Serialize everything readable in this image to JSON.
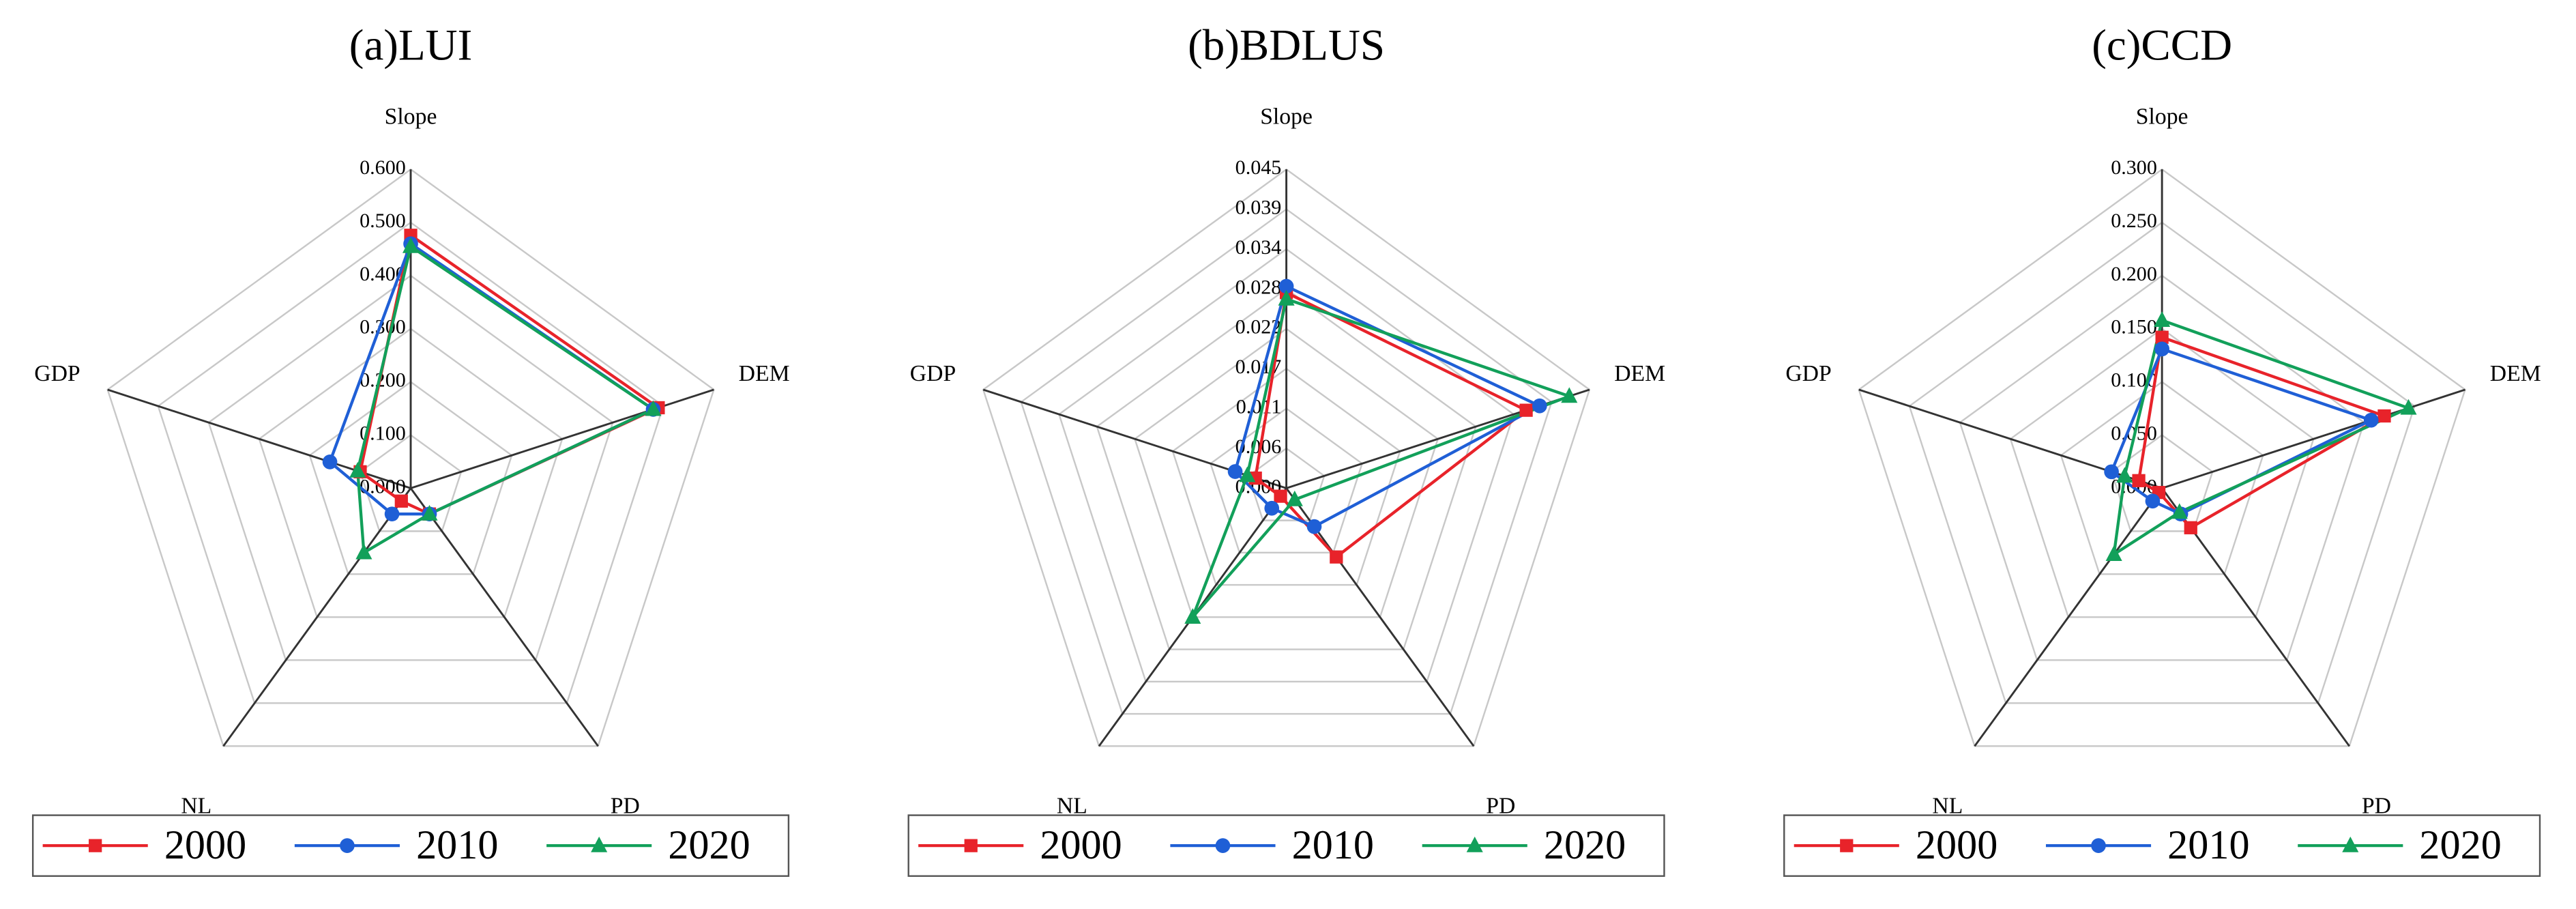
{
  "chart_data": [
    {
      "type": "radar",
      "title": "(a)LUI",
      "axes": [
        "Slope",
        "DEM",
        "PD",
        "NL",
        "GDP"
      ],
      "rlim": [
        0,
        0.6
      ],
      "rticks": [
        {
          "value": 0,
          "label": "0.000"
        },
        {
          "value": 0.1,
          "label": "0.100"
        },
        {
          "value": 0.2,
          "label": "0.200"
        },
        {
          "value": 0.3,
          "label": "0.300"
        },
        {
          "value": 0.4,
          "label": "0.400"
        },
        {
          "value": 0.5,
          "label": "0.500"
        },
        {
          "value": 0.6,
          "label": "0.600"
        }
      ],
      "grid": true,
      "series": [
        {
          "name": "2000",
          "color": "#e8232a",
          "marker": "square",
          "values": [
            0.476,
            0.49,
            0.06,
            0.03,
            0.1
          ]
        },
        {
          "name": "2010",
          "color": "#1f5fd6",
          "marker": "circle",
          "values": [
            0.46,
            0.48,
            0.06,
            0.06,
            0.16
          ]
        },
        {
          "name": "2020",
          "color": "#12a05a",
          "marker": "triangle",
          "values": [
            0.455,
            0.48,
            0.06,
            0.15,
            0.105
          ]
        }
      ]
    },
    {
      "type": "radar",
      "title": "(b)BDLUS",
      "axes": [
        "Slope",
        "DEM",
        "PD",
        "NL",
        "GDP"
      ],
      "rlim": [
        0,
        0.045
      ],
      "rticks": [
        {
          "value": 0,
          "label": "0.000"
        },
        {
          "value": 0.005625,
          "label": "0.006"
        },
        {
          "value": 0.01125,
          "label": "0.011"
        },
        {
          "value": 0.016875,
          "label": "0.017"
        },
        {
          "value": 0.0225,
          "label": "0.022"
        },
        {
          "value": 0.028125,
          "label": "0.028"
        },
        {
          "value": 0.03375,
          "label": "0.034"
        },
        {
          "value": 0.039375,
          "label": "0.039"
        },
        0.045
      ],
      "grid": true,
      "series": [
        {
          "name": "2000",
          "color": "#e8232a",
          "marker": "square",
          "values": [
            0.0276,
            0.0356,
            0.012,
            0.0014,
            0.0046
          ]
        },
        {
          "name": "2010",
          "color": "#1f5fd6",
          "marker": "circle",
          "values": [
            0.0285,
            0.0376,
            0.0067,
            0.0035,
            0.0076
          ]
        },
        {
          "name": "2020",
          "color": "#12a05a",
          "marker": "triangle",
          "values": [
            0.0267,
            0.042,
            0.002,
            0.0225,
            0.0058
          ]
        }
      ]
    },
    {
      "type": "radar",
      "title": "(c)CCD",
      "axes": [
        "Slope",
        "DEM",
        "PD",
        "NL",
        "GDP"
      ],
      "rlim": [
        0,
        0.3
      ],
      "rticks": [
        {
          "value": 0,
          "label": "0.000"
        },
        {
          "value": 0.05,
          "label": "0.050"
        },
        {
          "value": 0.1,
          "label": "0.100"
        },
        {
          "value": 0.15,
          "label": "0.150"
        },
        {
          "value": 0.2,
          "label": "0.200"
        },
        {
          "value": 0.25,
          "label": "0.250"
        },
        {
          "value": 0.3,
          "label": "0.300"
        }
      ],
      "grid": true,
      "series": [
        {
          "name": "2000",
          "color": "#e8232a",
          "marker": "square",
          "values": [
            0.142,
            0.22,
            0.046,
            0.005,
            0.023
          ]
        },
        {
          "name": "2010",
          "color": "#1f5fd6",
          "marker": "circle",
          "values": [
            0.131,
            0.207,
            0.03,
            0.015,
            0.05
          ]
        },
        {
          "name": "2020",
          "color": "#12a05a",
          "marker": "triangle",
          "values": [
            0.158,
            0.244,
            0.028,
            0.077,
            0.037
          ]
        }
      ]
    }
  ]
}
